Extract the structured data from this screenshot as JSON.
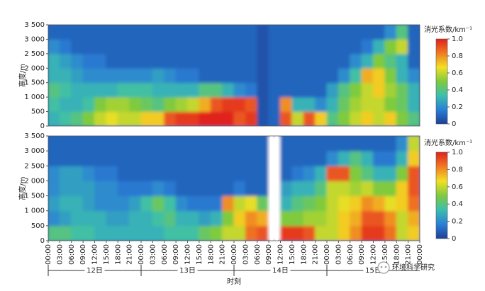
{
  "chart_data": [
    {
      "type": "heatmap",
      "ylabel": "高度/m",
      "clabel": "消光系数/km⁻¹",
      "ylim": [
        0,
        3500
      ],
      "yticks": [
        0,
        500,
        {
          "value": 1000,
          "label": "1 000"
        },
        {
          "value": 1500,
          "label": "1 500"
        },
        {
          "value": 2000,
          "label": "2 000"
        },
        {
          "value": 2500,
          "label": "2 500"
        },
        {
          "value": 3000,
          "label": "3 000"
        },
        {
          "value": 3500,
          "label": "3 500"
        }
      ],
      "clim": [
        0,
        1
      ],
      "cticks": [
        0,
        0.2,
        0.4,
        0.6,
        0.8,
        {
          "value": 1,
          "label": "1.0"
        }
      ],
      "colormap": [
        "#1c3f98",
        "#2a7fd6",
        "#3cbfae",
        "#7fca3e",
        "#f2e024",
        "#f07a22",
        "#e0201c"
      ],
      "values": [
        [
          0.3,
          0.35,
          0.4,
          0.5,
          0.6,
          0.65,
          0.6,
          0.6,
          0.7,
          0.7,
          0.9,
          0.95,
          0.95,
          1,
          1,
          1,
          0.9,
          0.95,
          0.05,
          0.1,
          0.9,
          0.6,
          0.9,
          0.7,
          0.4,
          0.5,
          0.6,
          0.7,
          0.6,
          0.7,
          0.5,
          0.4
        ],
        [
          0.35,
          0.3,
          0.3,
          0.35,
          0.5,
          0.55,
          0.55,
          0.5,
          0.45,
          0.4,
          0.5,
          0.55,
          0.6,
          0.75,
          0.9,
          0.95,
          0.95,
          0.9,
          0.05,
          0.1,
          0.8,
          0.3,
          0.3,
          0.2,
          0.3,
          0.45,
          0.55,
          0.6,
          0.6,
          0.5,
          0.45,
          0.3
        ],
        [
          0.4,
          0.35,
          0.3,
          0.3,
          0.3,
          0.3,
          0.35,
          0.35,
          0.35,
          0.3,
          0.3,
          0.3,
          0.3,
          0.4,
          0.4,
          0.3,
          0.2,
          0.15,
          0.05,
          0.1,
          0.1,
          0.1,
          0.1,
          0.1,
          0.25,
          0.4,
          0.5,
          0.6,
          0.7,
          0.55,
          0.45,
          0.3
        ],
        [
          0.3,
          0.3,
          0.25,
          0.2,
          0.2,
          0.2,
          0.2,
          0.2,
          0.2,
          0.25,
          0.2,
          0.15,
          0.15,
          0.1,
          0.1,
          0.1,
          0.1,
          0.1,
          0.05,
          0.1,
          0.1,
          0.1,
          0.1,
          0.1,
          0.1,
          0.2,
          0.35,
          0.75,
          0.7,
          0.5,
          0.3,
          0.2
        ],
        [
          0.3,
          0.25,
          0.2,
          0.15,
          0.15,
          0.1,
          0.1,
          0.1,
          0.1,
          0.1,
          0.1,
          0.1,
          0.1,
          0.1,
          0.1,
          0.1,
          0.1,
          0.1,
          0.05,
          0.1,
          0.1,
          0.1,
          0.1,
          0.1,
          0.1,
          0.1,
          0.2,
          0.3,
          0.5,
          0.4,
          0.3,
          0.1
        ],
        [
          0.2,
          0.15,
          0.1,
          0.1,
          0.1,
          0.1,
          0.1,
          0.1,
          0.1,
          0.1,
          0.1,
          0.1,
          0.1,
          0.1,
          0.1,
          0.1,
          0.1,
          0.1,
          0.05,
          0.1,
          0.1,
          0.1,
          0.1,
          0.1,
          0.1,
          0.1,
          0.1,
          0.15,
          0.3,
          0.5,
          0.6,
          0.1
        ],
        [
          0.1,
          0.1,
          0.1,
          0.1,
          0.1,
          0.1,
          0.1,
          0.1,
          0.1,
          0.1,
          0.1,
          0.1,
          0.1,
          0.1,
          0.1,
          0.1,
          0.1,
          0.1,
          0.05,
          0.1,
          0.1,
          0.1,
          0.1,
          0.1,
          0.1,
          0.1,
          0.1,
          0.1,
          0.1,
          0.2,
          0.4,
          0.1
        ]
      ]
    },
    {
      "type": "heatmap",
      "ylabel": "高度/m",
      "clabel": "消光系数/km⁻¹",
      "ylim": [
        0,
        3500
      ],
      "yticks": [
        0,
        500,
        {
          "value": 1000,
          "label": "1 000"
        },
        {
          "value": 1500,
          "label": "1 500"
        },
        {
          "value": 2000,
          "label": "2 000"
        },
        {
          "value": 2500,
          "label": "2 500"
        },
        {
          "value": 3000,
          "label": "3 000"
        },
        {
          "value": 3500,
          "label": "3 500"
        }
      ],
      "clim": [
        0,
        1
      ],
      "cticks": [
        0,
        0.2,
        0.4,
        0.6,
        0.8,
        {
          "value": 1,
          "label": "1.0"
        }
      ],
      "colormap": [
        "#1c3f98",
        "#2a7fd6",
        "#3cbfae",
        "#7fca3e",
        "#f2e024",
        "#f07a22",
        "#e0201c"
      ],
      "xticks": [
        "00:00",
        "03:00",
        "06:00",
        "09:00",
        "12:00",
        "15:00",
        "18:00",
        "21:00",
        "00:00",
        "03:00",
        "06:00",
        "09:00",
        "12:00",
        "15:00",
        "18:00",
        "21:00",
        "00:00",
        "03:00",
        "06:00",
        "09:00",
        "12:00",
        "15:00",
        "18:00",
        "21:00",
        "00:00",
        "03:00",
        "06:00",
        "09:00",
        "12:00",
        "15:00",
        "18:00",
        "21:00",
        "00:00"
      ],
      "x_groups": [
        "12日",
        "13日",
        "14日",
        "15日"
      ],
      "xlabel": "时刻",
      "values": [
        [
          0.4,
          0.4,
          0.35,
          0.35,
          0.3,
          0.3,
          0.3,
          0.3,
          0.3,
          0.3,
          0.35,
          0.35,
          0.35,
          0.45,
          0.5,
          0.6,
          0.6,
          0.85,
          0.9,
          null,
          0.95,
          0.95,
          0.9,
          0.6,
          0.6,
          0.7,
          0.8,
          0.95,
          0.95,
          0.85,
          0.6,
          0.7
        ],
        [
          0.2,
          0.25,
          0.3,
          0.3,
          0.3,
          0.25,
          0.25,
          0.3,
          0.3,
          0.35,
          0.4,
          0.3,
          0.3,
          0.25,
          0.3,
          0.5,
          0.7,
          0.8,
          0.75,
          null,
          0.5,
          0.5,
          0.55,
          0.55,
          0.6,
          0.7,
          0.75,
          0.9,
          0.9,
          0.8,
          0.6,
          0.75
        ],
        [
          0.25,
          0.3,
          0.3,
          0.25,
          0.2,
          0.2,
          0.2,
          0.25,
          0.35,
          0.45,
          0.35,
          0.2,
          0.15,
          0.15,
          0.15,
          0.8,
          0.6,
          0.65,
          0.45,
          null,
          0.3,
          0.4,
          0.45,
          0.5,
          0.6,
          0.65,
          0.7,
          0.8,
          0.75,
          0.65,
          0.7,
          0.85
        ],
        [
          0.2,
          0.25,
          0.25,
          0.25,
          0.2,
          0.2,
          0.15,
          0.15,
          0.15,
          0.2,
          0.15,
          0.1,
          0.1,
          0.1,
          0.1,
          0.1,
          0.15,
          0.1,
          0.1,
          null,
          0.25,
          0.3,
          0.3,
          0.4,
          0.6,
          0.6,
          0.55,
          0.6,
          0.5,
          0.5,
          0.7,
          0.9
        ],
        [
          0.2,
          0.25,
          0.25,
          0.2,
          0.15,
          0.15,
          0.1,
          0.1,
          0.1,
          0.1,
          0.1,
          0.1,
          0.1,
          0.1,
          0.1,
          0.1,
          0.1,
          0.1,
          0.1,
          null,
          0.1,
          0.15,
          0.2,
          0.3,
          0.9,
          0.9,
          0.5,
          0.4,
          0.3,
          0.3,
          0.5,
          0.9
        ],
        [
          0.1,
          0.1,
          0.1,
          0.1,
          0.1,
          0.1,
          0.1,
          0.1,
          0.1,
          0.1,
          0.1,
          0.1,
          0.1,
          0.1,
          0.1,
          0.1,
          0.1,
          0.1,
          0.1,
          null,
          0.1,
          0.1,
          0.1,
          0.1,
          0.2,
          0.3,
          0.4,
          0.3,
          0.15,
          0.15,
          0.3,
          0.7
        ],
        [
          0.1,
          0.1,
          0.1,
          0.1,
          0.1,
          0.1,
          0.1,
          0.1,
          0.1,
          0.1,
          0.1,
          0.1,
          0.1,
          0.1,
          0.1,
          0.1,
          0.1,
          0.1,
          0.1,
          null,
          0.1,
          0.1,
          0.1,
          0.1,
          0.1,
          0.1,
          0.1,
          0.1,
          0.1,
          0.1,
          0.2,
          0.6
        ]
      ]
    }
  ],
  "watermark": "环境科学研究"
}
